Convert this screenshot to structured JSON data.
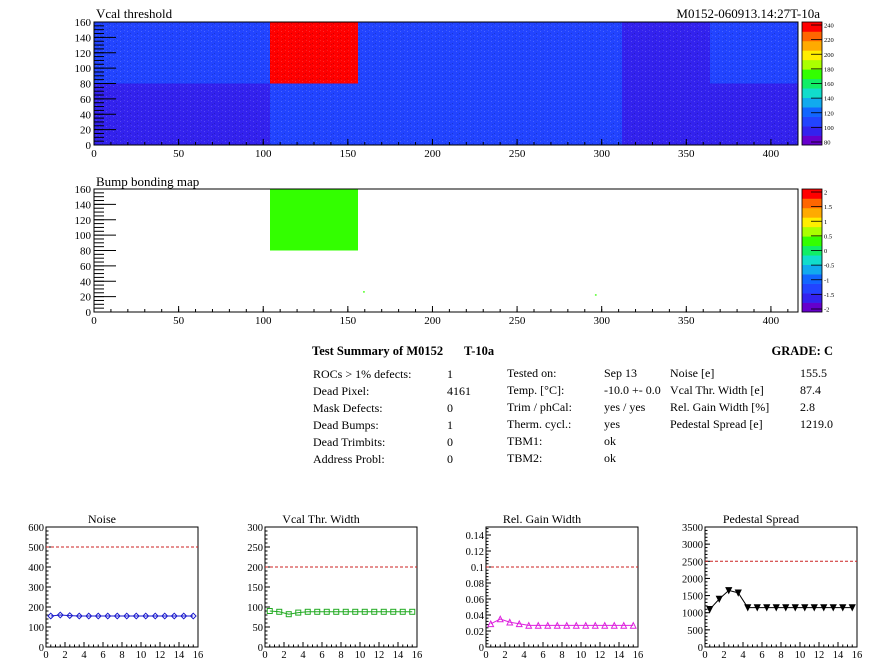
{
  "chart_data": [
    {
      "type": "heatmap",
      "title": "Vcal threshold",
      "module_label": "M0152-060913.14:27T-10a",
      "xlim": [
        0,
        416
      ],
      "ylim": [
        0,
        160
      ],
      "x_ticks": [
        0,
        50,
        100,
        150,
        200,
        250,
        300,
        350,
        400
      ],
      "y_ticks": [
        0,
        20,
        40,
        60,
        80,
        100,
        120,
        140,
        160
      ],
      "colorbar": {
        "ticks": [
          240,
          220,
          200,
          180,
          160,
          140,
          120,
          100,
          80
        ],
        "range": [
          80,
          250
        ]
      },
      "roc_blocks": [
        {
          "x0": 0,
          "x1": 52,
          "y0": 80,
          "y1": 160,
          "value": 115
        },
        {
          "x0": 52,
          "x1": 104,
          "y0": 80,
          "y1": 160,
          "value": 108
        },
        {
          "x0": 104,
          "x1": 156,
          "y0": 80,
          "y1": 160,
          "value": 250
        },
        {
          "x0": 156,
          "x1": 208,
          "y0": 80,
          "y1": 160,
          "value": 110
        },
        {
          "x0": 208,
          "x1": 260,
          "y0": 80,
          "y1": 160,
          "value": 108
        },
        {
          "x0": 260,
          "x1": 312,
          "y0": 80,
          "y1": 160,
          "value": 110
        },
        {
          "x0": 312,
          "x1": 364,
          "y0": 80,
          "y1": 160,
          "value": 102
        },
        {
          "x0": 364,
          "x1": 416,
          "y0": 80,
          "y1": 160,
          "value": 110
        },
        {
          "x0": 0,
          "x1": 52,
          "y0": 0,
          "y1": 80,
          "value": 98
        },
        {
          "x0": 52,
          "x1": 104,
          "y0": 0,
          "y1": 80,
          "value": 100
        },
        {
          "x0": 104,
          "x1": 156,
          "y0": 0,
          "y1": 80,
          "value": 112
        },
        {
          "x0": 156,
          "x1": 208,
          "y0": 0,
          "y1": 80,
          "value": 118
        },
        {
          "x0": 208,
          "x1": 260,
          "y0": 0,
          "y1": 80,
          "value": 118
        },
        {
          "x0": 260,
          "x1": 312,
          "y0": 0,
          "y1": 80,
          "value": 108
        },
        {
          "x0": 312,
          "x1": 364,
          "y0": 0,
          "y1": 80,
          "value": 106
        },
        {
          "x0": 364,
          "x1": 416,
          "y0": 0,
          "y1": 80,
          "value": 104
        }
      ]
    },
    {
      "type": "heatmap",
      "title": "Bump bonding map",
      "xlim": [
        0,
        416
      ],
      "ylim": [
        0,
        160
      ],
      "x_ticks": [
        0,
        50,
        100,
        150,
        200,
        250,
        300,
        350,
        400
      ],
      "y_ticks": [
        0,
        20,
        40,
        60,
        80,
        100,
        120,
        140,
        160
      ],
      "colorbar": {
        "ticks": [
          "2",
          "1.5",
          "1",
          "0.5",
          "0",
          "-0.5",
          "-1",
          "-1.5",
          "-2"
        ],
        "range": [
          -2,
          2
        ]
      },
      "blocks": [
        {
          "x0": 104,
          "x1": 156,
          "y0": 80,
          "y1": 160,
          "value": 0.2
        }
      ],
      "pixels": [
        {
          "x": 159,
          "y": 26,
          "value": 0.2
        },
        {
          "x": 296,
          "y": 22,
          "value": 0.2
        }
      ]
    },
    {
      "type": "line",
      "title": "Noise",
      "xlim": [
        0,
        16
      ],
      "ylim": [
        0,
        600
      ],
      "x_ticks": [
        0,
        2,
        4,
        6,
        8,
        10,
        12,
        14,
        16
      ],
      "y_ticks": [
        0,
        100,
        200,
        300,
        400,
        500,
        600
      ],
      "y_tick_labels": [
        "0",
        "100",
        "200",
        "300",
        "400",
        "500",
        "600"
      ],
      "threshold": 500,
      "marker": "diamond",
      "color": "#1a1acc",
      "x": [
        0.5,
        1.5,
        2.5,
        3.5,
        4.5,
        5.5,
        6.5,
        7.5,
        8.5,
        9.5,
        10.5,
        11.5,
        12.5,
        13.5,
        14.5,
        15.5
      ],
      "values": [
        155,
        160,
        157,
        155,
        155,
        155,
        155,
        155,
        155,
        155,
        155,
        155,
        155,
        155,
        155,
        155
      ]
    },
    {
      "type": "line",
      "title": "Vcal Thr. Width",
      "xlim": [
        0,
        16
      ],
      "ylim": [
        0,
        300
      ],
      "x_ticks": [
        0,
        2,
        4,
        6,
        8,
        10,
        12,
        14,
        16
      ],
      "y_ticks": [
        0,
        50,
        100,
        150,
        200,
        250,
        300
      ],
      "y_tick_labels": [
        "0",
        "50",
        "100",
        "150",
        "200",
        "250",
        "300"
      ],
      "threshold": 200,
      "marker": "square",
      "color": "#22aa22",
      "x": [
        0.5,
        1.5,
        2.5,
        3.5,
        4.5,
        5.5,
        6.5,
        7.5,
        8.5,
        9.5,
        10.5,
        11.5,
        12.5,
        13.5,
        14.5,
        15.5
      ],
      "values": [
        90,
        88,
        82,
        86,
        88,
        88,
        88,
        88,
        88,
        88,
        88,
        88,
        88,
        88,
        88,
        88
      ]
    },
    {
      "type": "line",
      "title": "Rel. Gain Width",
      "xlim": [
        0,
        16
      ],
      "ylim": [
        0,
        0.15
      ],
      "x_ticks": [
        0,
        2,
        4,
        6,
        8,
        10,
        12,
        14,
        16
      ],
      "y_ticks": [
        0,
        0.02,
        0.04,
        0.06,
        0.08,
        0.1,
        0.12,
        0.14
      ],
      "y_tick_labels": [
        "0",
        "0.02",
        "0.04",
        "0.06",
        "0.08",
        "0.1",
        "0.12",
        "0.14"
      ],
      "threshold": 0.1,
      "marker": "triangle-up",
      "color": "#dd22dd",
      "x": [
        0.5,
        1.5,
        2.5,
        3.5,
        4.5,
        5.5,
        6.5,
        7.5,
        8.5,
        9.5,
        10.5,
        11.5,
        12.5,
        13.5,
        14.5,
        15.5
      ],
      "values": [
        0.029,
        0.035,
        0.031,
        0.029,
        0.027,
        0.027,
        0.027,
        0.027,
        0.027,
        0.027,
        0.027,
        0.027,
        0.027,
        0.027,
        0.027,
        0.027
      ]
    },
    {
      "type": "line",
      "title": "Pedestal Spread",
      "xlim": [
        0,
        16
      ],
      "ylim": [
        0,
        3500
      ],
      "x_ticks": [
        0,
        2,
        4,
        6,
        8,
        10,
        12,
        14,
        16
      ],
      "y_ticks": [
        0,
        500,
        1000,
        1500,
        2000,
        2500,
        3000,
        3500
      ],
      "y_tick_labels": [
        "0",
        "500",
        "1000",
        "1500",
        "2000",
        "2500",
        "3000",
        "3500"
      ],
      "threshold": 2500,
      "marker": "triangle-down",
      "color": "#000000",
      "x": [
        0.5,
        1.5,
        2.5,
        3.5,
        4.5,
        5.5,
        6.5,
        7.5,
        8.5,
        9.5,
        10.5,
        11.5,
        12.5,
        13.5,
        14.5,
        15.5
      ],
      "values": [
        1100,
        1400,
        1650,
        1580,
        1150,
        1150,
        1150,
        1150,
        1150,
        1150,
        1150,
        1150,
        1150,
        1150,
        1150,
        1150
      ]
    }
  ],
  "summary": {
    "heading": "Test Summary of M0152",
    "temp_label": "T-10a",
    "grade": "GRADE:  C",
    "col1": [
      {
        "label": "ROCs > 1% defects:",
        "value": "1"
      },
      {
        "label": "Dead Pixel:",
        "value": "4161"
      },
      {
        "label": "Mask Defects:",
        "value": "0"
      },
      {
        "label": "Dead Bumps:",
        "value": "1"
      },
      {
        "label": "Dead Trimbits:",
        "value": "0"
      },
      {
        "label": "Address Probl:",
        "value": "0"
      }
    ],
    "col2": [
      {
        "label": "Tested on:",
        "value": "Sep 13"
      },
      {
        "label": "Temp. [°C]:",
        "value": "-10.0 +- 0.0"
      },
      {
        "label": "Trim / phCal:",
        "value": "yes / yes"
      },
      {
        "label": "Therm. cycl.:",
        "value": "yes"
      },
      {
        "label": "TBM1:",
        "value": "ok"
      },
      {
        "label": "TBM2:",
        "value": "ok"
      }
    ],
    "col3": [
      {
        "label": "Noise [e]",
        "value": "155.5"
      },
      {
        "label": "Vcal Thr. Width [e]",
        "value": "87.4"
      },
      {
        "label": "Rel. Gain Width [%]",
        "value": "2.8"
      },
      {
        "label": "Pedestal Spread [e]",
        "value": "1219.0"
      }
    ]
  },
  "colors": {
    "threshold_line": "#cc2222",
    "palette": [
      "#6600cc",
      "#3322ee",
      "#2244ff",
      "#1166ff",
      "#11aaee",
      "#11ddcc",
      "#11ee66",
      "#33ff00",
      "#aaff00",
      "#ffee00",
      "#ffaa00",
      "#ff6600",
      "#ff0000"
    ]
  }
}
